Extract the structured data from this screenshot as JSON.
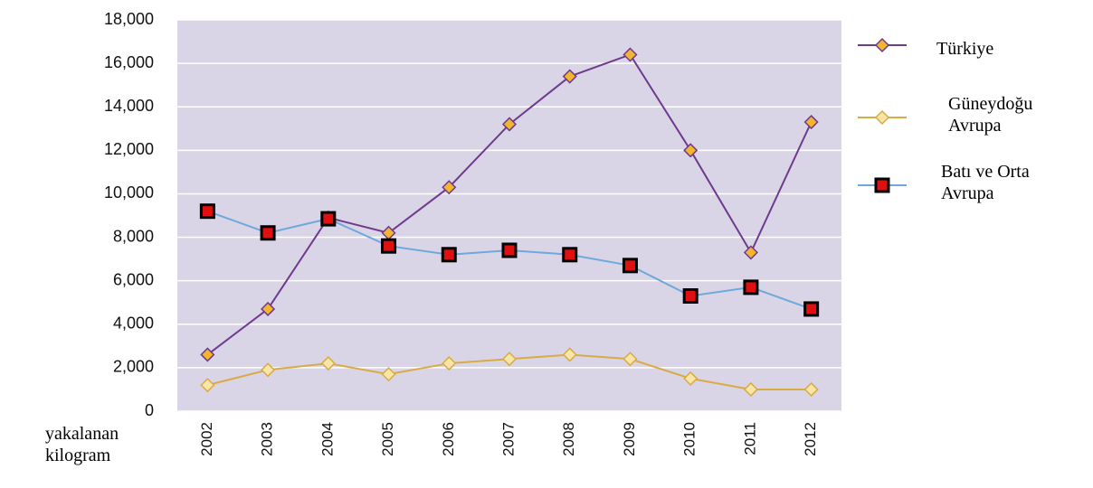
{
  "chart_data": {
    "type": "line",
    "ylabel": "yakalanan kilogram",
    "categories": [
      "2002",
      "2003",
      "2004",
      "2005",
      "2006",
      "2007",
      "2008",
      "2009",
      "2010",
      "2011",
      "2012"
    ],
    "series": [
      {
        "name": "Türkiye",
        "color": "#6f3a8e",
        "marker": "diamond",
        "marker_fill": "#f2b52e",
        "values": [
          2600,
          4700,
          8900,
          8200,
          10300,
          13200,
          15400,
          16400,
          12000,
          7300,
          13300
        ]
      },
      {
        "name": "Güneydoğu Avrupa",
        "color": "#d8ab45",
        "marker": "diamond",
        "marker_fill": "#f8e6a8",
        "values": [
          1200,
          1900,
          2200,
          1700,
          2200,
          2400,
          2600,
          2400,
          1500,
          1000,
          1000
        ]
      },
      {
        "name": "Batı ve Orta Avrupa",
        "color": "#6fa8dc",
        "marker": "square",
        "marker_fill": "#e01010",
        "values": [
          9200,
          8200,
          8850,
          7600,
          7200,
          7400,
          7200,
          6700,
          5300,
          5700,
          4700
        ]
      }
    ],
    "ylim": [
      0,
      18000
    ],
    "yticks": [
      0,
      {
        "value": 2000,
        "label": "2,000"
      },
      {
        "value": 4000,
        "label": "4,000"
      },
      {
        "value": 6000,
        "label": "6,000"
      },
      {
        "value": 8000,
        "label": "8,000"
      },
      {
        "value": 10000,
        "label": "10,000"
      },
      {
        "value": 12000,
        "label": "12,000"
      },
      {
        "value": 14000,
        "label": "14,000"
      },
      {
        "value": 16000,
        "label": "16,000"
      },
      {
        "value": 18000,
        "label": "18,000"
      }
    ],
    "grid": true,
    "plot_background": "#d9d5e6",
    "legend": "right"
  }
}
